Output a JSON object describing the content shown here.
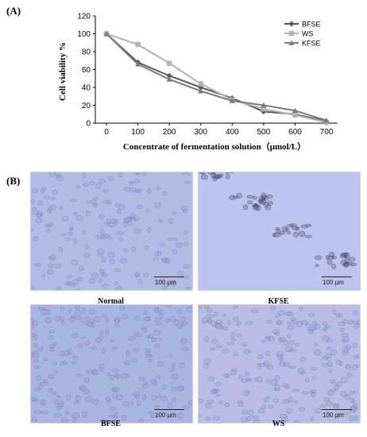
{
  "panel_a_label": "(A)",
  "panel_b_label": "(B)",
  "chart_data": {
    "type": "line",
    "title": "",
    "xlabel": "Concentrate of fermentation solution（μmol/L）",
    "ylabel": "Cell viability %",
    "x": [
      0,
      100,
      200,
      300,
      400,
      500,
      600,
      700
    ],
    "xlim": [
      0,
      700
    ],
    "ylim": [
      0,
      120
    ],
    "xticks": [
      "0",
      "100",
      "200",
      "300",
      "400",
      "500",
      "600",
      "700"
    ],
    "yticks": [
      "0",
      "20",
      "40",
      "60",
      "80",
      "100",
      "120"
    ],
    "grid": false,
    "legend_position": "top-right",
    "series": [
      {
        "name": "BFSE",
        "marker": "diamond",
        "color": "#595959",
        "values": [
          100,
          68,
          53,
          40,
          28,
          13,
          10,
          2
        ]
      },
      {
        "name": "WS",
        "marker": "square",
        "color": "#b3b3b3",
        "values": [
          100,
          88,
          67,
          44,
          26,
          16,
          9,
          1
        ]
      },
      {
        "name": "KFSE",
        "marker": "triangle",
        "color": "#7a7a7a",
        "values": [
          100,
          66,
          49,
          36,
          25,
          20,
          14,
          3
        ]
      }
    ]
  },
  "micrographs": [
    {
      "caption": "Normal",
      "scale": "100 μm",
      "color": "#b4bbe2"
    },
    {
      "caption": "KFSE",
      "scale": "100 μm",
      "color": "#bcc4ee"
    },
    {
      "caption": "BFSE",
      "scale": "100 μm",
      "color": "#aab4e0"
    },
    {
      "caption": "WS",
      "scale": "100 μm",
      "color": "#b7bde3"
    }
  ]
}
